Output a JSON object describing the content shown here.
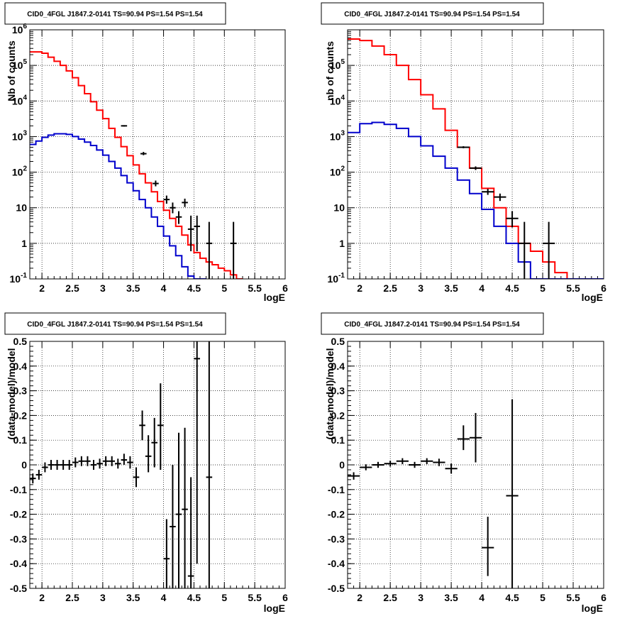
{
  "chart_data": [
    {
      "type": "line",
      "title": "CID0_4FGL J1847.2-0141 TS=90.94 PS=1.54 PS=1.54",
      "xlabel": "logE",
      "ylabel": "Nb of counts",
      "log_y": true,
      "xlim": [
        1.8,
        6.0
      ],
      "ylim": [
        0.1,
        1000000
      ],
      "x_ticks": [
        "2",
        "2.5",
        "3",
        "3.5",
        "4",
        "4.5",
        "5",
        "5.5",
        "6"
      ],
      "y_ticks": [
        "10^-1",
        "1",
        "10",
        "10^2",
        "10^3",
        "10^4",
        "10^5",
        "10^6"
      ],
      "grid": true,
      "series": [
        {
          "kind": "step",
          "color": "#ff0000",
          "edges": [
            1.8,
            1.9,
            2.0,
            2.1,
            2.2,
            2.3,
            2.4,
            2.5,
            2.6,
            2.7,
            2.8,
            2.9,
            3.0,
            3.1,
            3.2,
            3.3,
            3.4,
            3.5,
            3.6,
            3.7,
            3.8,
            3.9,
            4.0,
            4.1,
            4.2,
            4.3,
            4.4,
            4.5,
            4.6,
            4.7,
            4.8,
            4.9,
            5.0,
            5.1,
            5.2,
            5.3
          ],
          "values": [
            240000,
            240000,
            220000,
            170000,
            130000,
            100000,
            70000,
            45000,
            27000,
            16000,
            9500,
            5500,
            3200,
            1700,
            950,
            520,
            290,
            160,
            90,
            50,
            28,
            15,
            8.5,
            5,
            3,
            1.7,
            0.9,
            0.55,
            0.38,
            0.3,
            0.25,
            0.2,
            0.17,
            0.13,
            0.1
          ]
        },
        {
          "kind": "step",
          "color": "#0000cc",
          "edges": [
            1.8,
            1.9,
            2.0,
            2.1,
            2.2,
            2.3,
            2.4,
            2.5,
            2.6,
            2.7,
            2.8,
            2.9,
            3.0,
            3.1,
            3.2,
            3.3,
            3.4,
            3.5,
            3.6,
            3.7,
            3.8,
            3.9,
            4.0,
            4.1,
            4.2,
            4.3,
            4.4,
            4.5,
            4.6,
            4.7
          ],
          "values": [
            600,
            750,
            950,
            1100,
            1200,
            1200,
            1150,
            1000,
            850,
            700,
            560,
            420,
            300,
            200,
            130,
            80,
            50,
            30,
            17,
            10,
            5.5,
            3,
            1.6,
            0.85,
            0.45,
            0.22,
            0.12,
            0.1,
            0.08,
            0.06
          ]
        },
        {
          "kind": "points",
          "color": "#000000",
          "points": [
            {
              "x": 3.35,
              "y": 2000,
              "xerr": 0.05,
              "ylo": 1910,
              "yhi": 2090
            },
            {
              "x": 3.67,
              "y": 330,
              "xerr": 0.05,
              "ylo": 300,
              "yhi": 370
            },
            {
              "x": 3.87,
              "y": 48,
              "xerr": 0.05,
              "ylo": 40,
              "yhi": 58
            },
            {
              "x": 4.05,
              "y": 17,
              "xerr": 0.05,
              "ylo": 13,
              "yhi": 22
            },
            {
              "x": 4.15,
              "y": 10,
              "xerr": 0.05,
              "ylo": 7,
              "yhi": 14
            },
            {
              "x": 4.25,
              "y": 5.5,
              "xerr": 0.05,
              "ylo": 3.5,
              "yhi": 8
            },
            {
              "x": 4.35,
              "y": 14,
              "xerr": 0.05,
              "ylo": 10.5,
              "yhi": 18
            },
            {
              "x": 4.45,
              "y": 2.5,
              "xerr": 0.05,
              "ylo": 0.6,
              "yhi": 6
            },
            {
              "x": 4.55,
              "y": 3,
              "xerr": 0.05,
              "ylo": 0.6,
              "yhi": 6
            },
            {
              "x": 4.75,
              "y": 1,
              "xerr": 0.05,
              "ylo": 0.1,
              "yhi": 4
            },
            {
              "x": 5.15,
              "y": 1,
              "xerr": 0.05,
              "ylo": 0.1,
              "yhi": 4
            }
          ]
        }
      ]
    },
    {
      "type": "line",
      "title": "CID0_4FGL J1847.2-0141 TS=90.94 PS=1.54 PS=1.54",
      "xlabel": "logE",
      "ylabel": "nb of counts",
      "log_y": true,
      "xlim": [
        1.8,
        6.0
      ],
      "ylim": [
        0.1,
        1000000
      ],
      "x_ticks": [
        "2",
        "2.5",
        "3",
        "3.5",
        "4",
        "4.5",
        "5",
        "5.5",
        "6"
      ],
      "y_ticks": [
        "10^-1",
        "1",
        "10",
        "10^2",
        "10^3",
        "10^4",
        "10^5"
      ],
      "grid": true,
      "series": [
        {
          "kind": "step",
          "color": "#ff0000",
          "edges": [
            1.8,
            2.0,
            2.2,
            2.4,
            2.6,
            2.8,
            3.0,
            3.2,
            3.4,
            3.6,
            3.8,
            4.0,
            4.2,
            4.4,
            4.6,
            4.8,
            5.0,
            5.2,
            5.4,
            5.6,
            6.0
          ],
          "values": [
            550000,
            500000,
            350000,
            200000,
            100000,
            40000,
            15000,
            6000,
            1500,
            500,
            130,
            35,
            10,
            3,
            1,
            0.6,
            0.3,
            0.15,
            0.1,
            0.1
          ]
        },
        {
          "kind": "step",
          "color": "#0000cc",
          "edges": [
            1.8,
            2.0,
            2.2,
            2.4,
            2.6,
            2.8,
            3.0,
            3.2,
            3.4,
            3.6,
            3.8,
            4.0,
            4.2,
            4.4,
            4.6,
            4.8,
            5.0,
            5.2,
            6.0
          ],
          "values": [
            1300,
            2300,
            2500,
            2200,
            1700,
            1000,
            550,
            280,
            130,
            60,
            25,
            9,
            3,
            1,
            0.3,
            0.1,
            0.1,
            0.1
          ]
        },
        {
          "kind": "points",
          "color": "#000000",
          "points": [
            {
              "x": 3.7,
              "y": 500,
              "xerr": 0.1,
              "ylo": 470,
              "yhi": 535
            },
            {
              "x": 3.9,
              "y": 130,
              "xerr": 0.1,
              "ylo": 115,
              "yhi": 145
            },
            {
              "x": 4.1,
              "y": 28,
              "xerr": 0.1,
              "ylo": 23,
              "yhi": 34
            },
            {
              "x": 4.3,
              "y": 20,
              "xerr": 0.1,
              "ylo": 15.5,
              "yhi": 25
            },
            {
              "x": 4.5,
              "y": 5,
              "xerr": 0.1,
              "ylo": 2.8,
              "yhi": 8
            },
            {
              "x": 4.7,
              "y": 1,
              "xerr": 0.1,
              "ylo": 0.1,
              "yhi": 4
            },
            {
              "x": 5.1,
              "y": 1,
              "xerr": 0.1,
              "ylo": 0.1,
              "yhi": 4
            }
          ]
        }
      ]
    },
    {
      "type": "scatter",
      "title": "CID0_4FGL J1847.2-0141 TS=90.94 PS=1.54 PS=1.54",
      "xlabel": "logE",
      "ylabel": "(data-model)/model",
      "log_y": false,
      "xlim": [
        1.8,
        6.0
      ],
      "ylim": [
        -0.5,
        0.5
      ],
      "x_ticks": [
        "2",
        "2.5",
        "3",
        "3.5",
        "4",
        "4.5",
        "5",
        "5.5",
        "6"
      ],
      "y_ticks": [
        "-0.5",
        "-0.4",
        "-0.3",
        "-0.2",
        "-0.1",
        "0",
        "0.1",
        "0.2",
        "0.3",
        "0.4",
        "0.5"
      ],
      "grid": true,
      "series": [
        {
          "kind": "points",
          "color": "#000000",
          "points": [
            {
              "x": 1.85,
              "y": -0.055,
              "xerr": 0.05,
              "ylo": -0.075,
              "yhi": -0.035
            },
            {
              "x": 1.95,
              "y": -0.04,
              "xerr": 0.05,
              "ylo": -0.06,
              "yhi": -0.02
            },
            {
              "x": 2.05,
              "y": -0.01,
              "xerr": 0.05,
              "ylo": -0.03,
              "yhi": 0.01
            },
            {
              "x": 2.15,
              "y": 0.0,
              "xerr": 0.05,
              "ylo": -0.02,
              "yhi": 0.02
            },
            {
              "x": 2.25,
              "y": 0.0,
              "xerr": 0.05,
              "ylo": -0.02,
              "yhi": 0.02
            },
            {
              "x": 2.35,
              "y": 0.0,
              "xerr": 0.05,
              "ylo": -0.02,
              "yhi": 0.02
            },
            {
              "x": 2.45,
              "y": 0.0,
              "xerr": 0.05,
              "ylo": -0.02,
              "yhi": 0.02
            },
            {
              "x": 2.55,
              "y": 0.01,
              "xerr": 0.05,
              "ylo": -0.01,
              "yhi": 0.03
            },
            {
              "x": 2.65,
              "y": 0.015,
              "xerr": 0.05,
              "ylo": -0.005,
              "yhi": 0.035
            },
            {
              "x": 2.75,
              "y": 0.015,
              "xerr": 0.05,
              "ylo": -0.005,
              "yhi": 0.035
            },
            {
              "x": 2.85,
              "y": 0.0,
              "xerr": 0.05,
              "ylo": -0.02,
              "yhi": 0.02
            },
            {
              "x": 2.95,
              "y": 0.005,
              "xerr": 0.05,
              "ylo": -0.015,
              "yhi": 0.025
            },
            {
              "x": 3.05,
              "y": 0.015,
              "xerr": 0.05,
              "ylo": -0.005,
              "yhi": 0.035
            },
            {
              "x": 3.15,
              "y": 0.015,
              "xerr": 0.05,
              "ylo": -0.005,
              "yhi": 0.035
            },
            {
              "x": 3.25,
              "y": 0.005,
              "xerr": 0.05,
              "ylo": -0.015,
              "yhi": 0.025
            },
            {
              "x": 3.35,
              "y": 0.02,
              "xerr": 0.05,
              "ylo": 0.0,
              "yhi": 0.045
            },
            {
              "x": 3.45,
              "y": 0.01,
              "xerr": 0.05,
              "ylo": -0.015,
              "yhi": 0.035
            },
            {
              "x": 3.55,
              "y": -0.05,
              "xerr": 0.05,
              "ylo": -0.09,
              "yhi": -0.01
            },
            {
              "x": 3.65,
              "y": 0.16,
              "xerr": 0.05,
              "ylo": 0.1,
              "yhi": 0.22
            },
            {
              "x": 3.75,
              "y": 0.035,
              "xerr": 0.05,
              "ylo": -0.03,
              "yhi": 0.12
            },
            {
              "x": 3.85,
              "y": 0.09,
              "xerr": 0.05,
              "ylo": -0.01,
              "yhi": 0.19
            },
            {
              "x": 3.95,
              "y": 0.16,
              "xerr": 0.05,
              "ylo": -0.02,
              "yhi": 0.33
            },
            {
              "x": 4.05,
              "y": -0.38,
              "xerr": 0.05,
              "ylo": -0.5,
              "yhi": -0.22
            },
            {
              "x": 4.15,
              "y": -0.25,
              "xerr": 0.05,
              "ylo": -0.5,
              "yhi": 0.0
            },
            {
              "x": 4.25,
              "y": -0.2,
              "xerr": 0.05,
              "ylo": -0.5,
              "yhi": 0.13
            },
            {
              "x": 4.35,
              "y": -0.18,
              "xerr": 0.05,
              "ylo": -0.5,
              "yhi": 0.15
            },
            {
              "x": 4.45,
              "y": -0.45,
              "xerr": 0.05,
              "ylo": -0.5,
              "yhi": -0.05
            },
            {
              "x": 4.55,
              "y": 0.43,
              "xerr": 0.05,
              "ylo": -0.4,
              "yhi": 0.5
            },
            {
              "x": 4.75,
              "y": -0.05,
              "xerr": 0.05,
              "ylo": -0.5,
              "yhi": 0.5
            }
          ]
        }
      ]
    },
    {
      "type": "scatter",
      "title": "CID0_4FGL J1847.2-0141 TS=90.94 PS=1.54 PS=1.54",
      "xlabel": "logE",
      "ylabel": "(data-model)/model",
      "log_y": false,
      "xlim": [
        1.8,
        6.0
      ],
      "ylim": [
        -0.5,
        0.5
      ],
      "x_ticks": [
        "2",
        "2.5",
        "3",
        "3.5",
        "4",
        "4.5",
        "5",
        "5.5",
        "6"
      ],
      "y_ticks": [
        "-0.5",
        "-0.4",
        "-0.3",
        "-0.2",
        "-0.1",
        "0",
        "0.1",
        "0.2",
        "0.3",
        "0.4",
        "0.5"
      ],
      "grid": true,
      "series": [
        {
          "kind": "points",
          "color": "#000000",
          "points": [
            {
              "x": 1.9,
              "y": -0.045,
              "xerr": 0.1,
              "ylo": -0.06,
              "yhi": -0.03
            },
            {
              "x": 2.1,
              "y": -0.01,
              "xerr": 0.1,
              "ylo": -0.022,
              "yhi": 0.002
            },
            {
              "x": 2.3,
              "y": 0.0,
              "xerr": 0.1,
              "ylo": -0.012,
              "yhi": 0.012
            },
            {
              "x": 2.5,
              "y": 0.005,
              "xerr": 0.1,
              "ylo": -0.007,
              "yhi": 0.017
            },
            {
              "x": 2.7,
              "y": 0.015,
              "xerr": 0.1,
              "ylo": 0.003,
              "yhi": 0.027
            },
            {
              "x": 2.9,
              "y": 0.0,
              "xerr": 0.1,
              "ylo": -0.012,
              "yhi": 0.012
            },
            {
              "x": 3.1,
              "y": 0.015,
              "xerr": 0.1,
              "ylo": 0.003,
              "yhi": 0.027
            },
            {
              "x": 3.3,
              "y": 0.01,
              "xerr": 0.1,
              "ylo": -0.005,
              "yhi": 0.025
            },
            {
              "x": 3.5,
              "y": -0.015,
              "xerr": 0.1,
              "ylo": -0.035,
              "yhi": 0.005
            },
            {
              "x": 3.7,
              "y": 0.105,
              "xerr": 0.1,
              "ylo": 0.06,
              "yhi": 0.16
            },
            {
              "x": 3.9,
              "y": 0.11,
              "xerr": 0.1,
              "ylo": 0.01,
              "yhi": 0.21
            },
            {
              "x": 4.1,
              "y": -0.335,
              "xerr": 0.1,
              "ylo": -0.45,
              "yhi": -0.21
            },
            {
              "x": 4.5,
              "y": -0.125,
              "xerr": 0.1,
              "ylo": -0.5,
              "yhi": 0.265
            }
          ]
        }
      ]
    }
  ]
}
